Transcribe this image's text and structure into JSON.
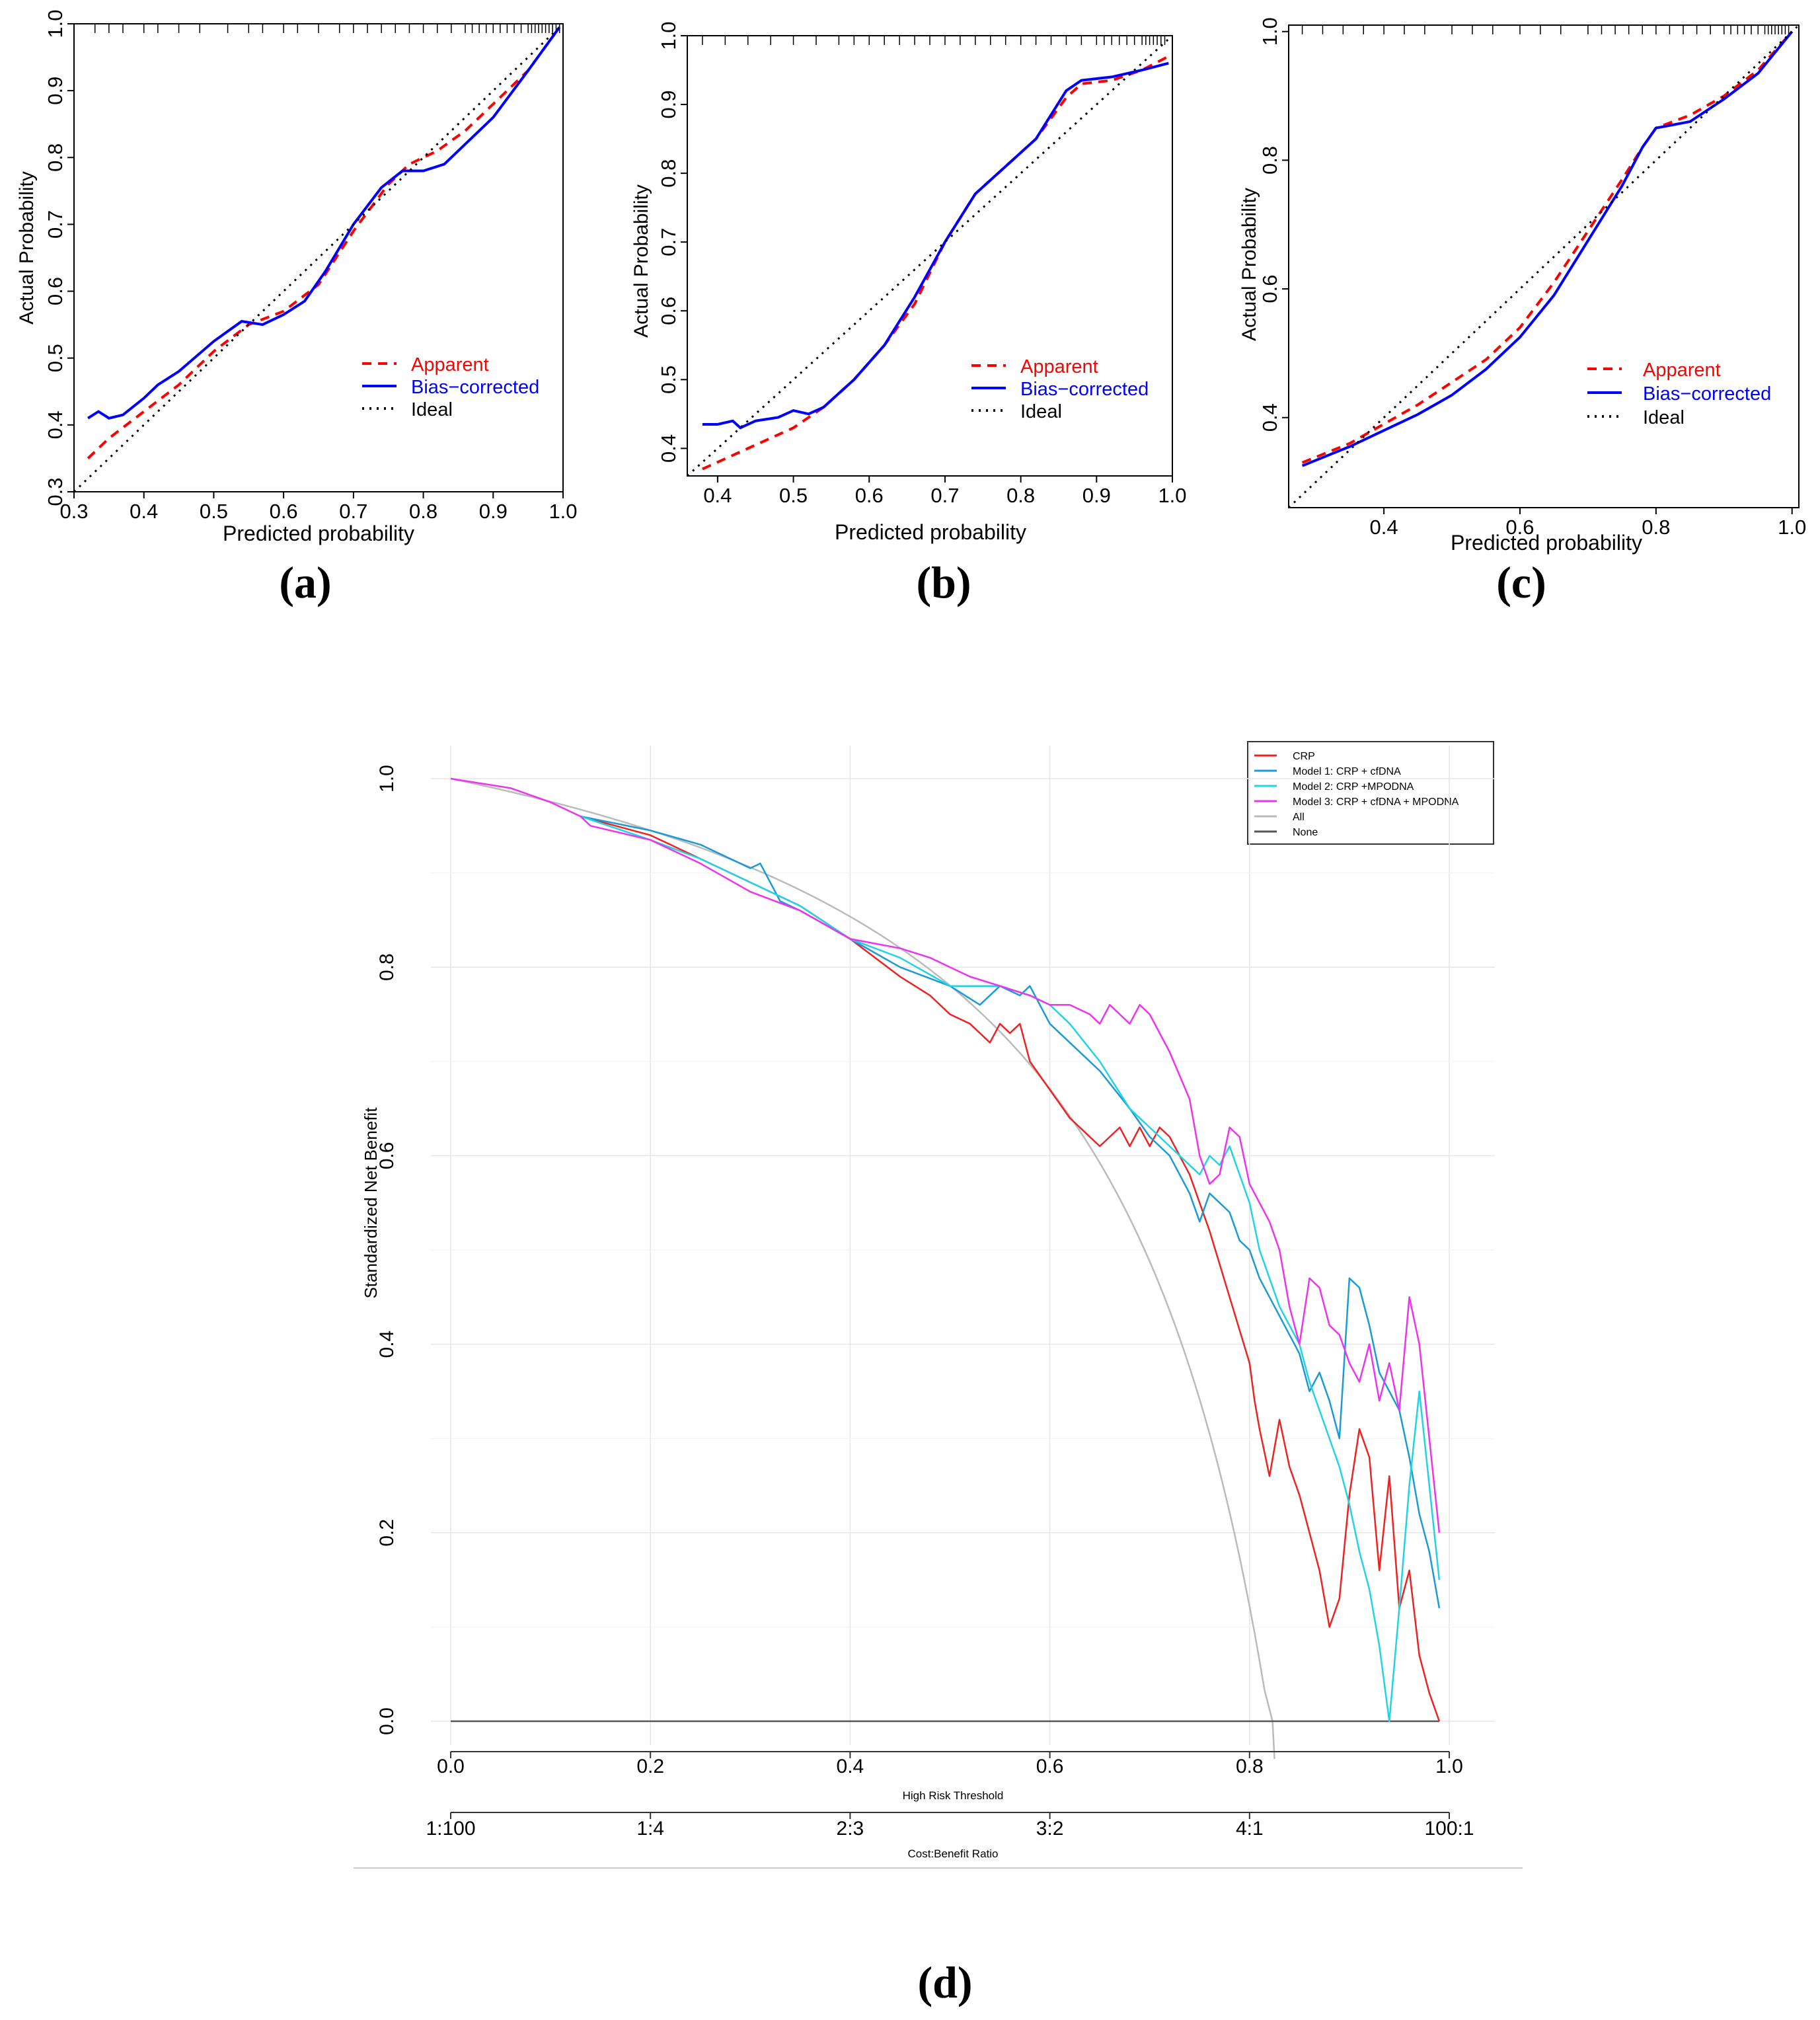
{
  "panels": [
    {
      "label": "(a)",
      "chart_data": {
        "type": "line",
        "xlabel": "Predicted probability",
        "ylabel": "Actual Probability",
        "xlim": [
          0.3,
          1.0
        ],
        "ylim": [
          0.3,
          1.0
        ],
        "xticks": [
          "0.3",
          "0.4",
          "0.5",
          "0.6",
          "0.7",
          "0.8",
          "0.9",
          "1.0"
        ],
        "yticks": [
          "0.3",
          "0.4",
          "0.5",
          "0.6",
          "0.7",
          "0.8",
          "0.9",
          "1.0"
        ],
        "legend": {
          "placement": "bottom-right",
          "entries": [
            "Apparent",
            "Bias−corrected",
            "Ideal"
          ]
        },
        "rug": [
          0.33,
          0.35,
          0.37,
          0.4,
          0.42,
          0.45,
          0.48,
          0.52,
          0.55,
          0.57,
          0.6,
          0.62,
          0.65,
          0.68,
          0.7,
          0.72,
          0.74,
          0.76,
          0.78,
          0.8,
          0.82,
          0.84,
          0.86,
          0.87,
          0.88,
          0.89,
          0.9,
          0.91,
          0.92,
          0.93,
          0.94,
          0.95,
          0.955,
          0.96,
          0.965,
          0.97,
          0.975,
          0.98,
          0.985,
          0.99,
          0.995
        ],
        "series": [
          {
            "name": "Apparent",
            "color": "#ff0000",
            "style": "dashed",
            "x": [
              0.32,
              0.35,
              0.4,
              0.45,
              0.5,
              0.55,
              0.6,
              0.65,
              0.7,
              0.75,
              0.78,
              0.82,
              0.86,
              0.9,
              0.95,
              0.995
            ],
            "y": [
              0.35,
              0.38,
              0.42,
              0.46,
              0.51,
              0.55,
              0.57,
              0.61,
              0.69,
              0.76,
              0.79,
              0.81,
              0.84,
              0.88,
              0.93,
              0.995
            ]
          },
          {
            "name": "Bias−corrected",
            "color": "#0000ff",
            "style": "solid",
            "x": [
              0.32,
              0.335,
              0.35,
              0.37,
              0.4,
              0.42,
              0.45,
              0.5,
              0.54,
              0.57,
              0.6,
              0.63,
              0.66,
              0.7,
              0.74,
              0.77,
              0.8,
              0.83,
              0.86,
              0.9,
              0.95,
              0.995
            ],
            "y": [
              0.41,
              0.42,
              0.41,
              0.415,
              0.44,
              0.46,
              0.48,
              0.525,
              0.555,
              0.55,
              0.565,
              0.585,
              0.63,
              0.7,
              0.755,
              0.78,
              0.78,
              0.79,
              0.82,
              0.86,
              0.93,
              0.995
            ]
          },
          {
            "name": "Ideal",
            "color": "#000000",
            "style": "dotted",
            "x": [
              0.3,
              1.0
            ],
            "y": [
              0.3,
              1.0
            ]
          }
        ]
      }
    },
    {
      "label": "(b)",
      "chart_data": {
        "type": "line",
        "xlabel": "Predicted probability",
        "ylabel": "Actual Probability",
        "xlim": [
          0.36,
          1.0
        ],
        "ylim": [
          0.36,
          1.0
        ],
        "xticks": [
          "0.4",
          "0.5",
          "0.6",
          "0.7",
          "0.8",
          "0.9",
          "1.0"
        ],
        "yticks": [
          "0.4",
          "0.5",
          "0.6",
          "0.7",
          "0.8",
          "0.9",
          "1.0"
        ],
        "legend": {
          "placement": "bottom-right",
          "entries": [
            "Apparent",
            "Bias−corrected",
            "Ideal"
          ]
        },
        "rug": [
          0.38,
          0.41,
          0.44,
          0.47,
          0.5,
          0.53,
          0.56,
          0.58,
          0.6,
          0.62,
          0.64,
          0.66,
          0.68,
          0.7,
          0.72,
          0.74,
          0.76,
          0.78,
          0.8,
          0.82,
          0.84,
          0.86,
          0.88,
          0.9,
          0.91,
          0.92,
          0.93,
          0.94,
          0.95,
          0.96,
          0.965,
          0.97,
          0.975,
          0.98,
          0.985,
          0.99
        ],
        "series": [
          {
            "name": "Apparent",
            "color": "#ff0000",
            "style": "dashed",
            "x": [
              0.38,
              0.42,
              0.46,
              0.5,
              0.54,
              0.58,
              0.62,
              0.66,
              0.7,
              0.74,
              0.78,
              0.82,
              0.86,
              0.88,
              0.92,
              0.96,
              0.995
            ],
            "y": [
              0.37,
              0.39,
              0.41,
              0.43,
              0.46,
              0.5,
              0.55,
              0.61,
              0.7,
              0.77,
              0.81,
              0.85,
              0.91,
              0.93,
              0.935,
              0.95,
              0.97
            ]
          },
          {
            "name": "Bias−corrected",
            "color": "#0000ff",
            "style": "solid",
            "x": [
              0.38,
              0.4,
              0.42,
              0.43,
              0.45,
              0.48,
              0.5,
              0.52,
              0.54,
              0.58,
              0.62,
              0.66,
              0.7,
              0.74,
              0.78,
              0.82,
              0.86,
              0.88,
              0.92,
              0.96,
              0.995
            ],
            "y": [
              0.435,
              0.435,
              0.44,
              0.43,
              0.44,
              0.445,
              0.455,
              0.45,
              0.46,
              0.5,
              0.55,
              0.62,
              0.7,
              0.77,
              0.81,
              0.85,
              0.92,
              0.935,
              0.94,
              0.95,
              0.96
            ]
          },
          {
            "name": "Ideal",
            "color": "#000000",
            "style": "dotted",
            "x": [
              0.36,
              1.0
            ],
            "y": [
              0.36,
              1.0
            ]
          }
        ]
      }
    },
    {
      "label": "(c)",
      "chart_data": {
        "type": "line",
        "xlabel": "Predicted probability",
        "ylabel": "Actual Probability",
        "xlim": [
          0.26,
          1.01
        ],
        "ylim": [
          0.26,
          1.01
        ],
        "xticks": [
          "0.4",
          "0.6",
          "0.8",
          "1.0"
        ],
        "yticks": [
          "0.4",
          "0.6",
          "0.8",
          "1.0"
        ],
        "legend": {
          "placement": "bottom-right",
          "entries": [
            "Apparent",
            "Bias−corrected",
            "Ideal"
          ]
        },
        "rug": [
          0.28,
          0.31,
          0.34,
          0.37,
          0.4,
          0.43,
          0.46,
          0.5,
          0.53,
          0.56,
          0.6,
          0.63,
          0.66,
          0.7,
          0.72,
          0.74,
          0.76,
          0.78,
          0.8,
          0.82,
          0.84,
          0.86,
          0.88,
          0.9,
          0.91,
          0.92,
          0.93,
          0.94,
          0.95,
          0.96,
          0.965,
          0.97,
          0.975,
          0.98,
          0.985,
          0.99,
          0.995
        ],
        "series": [
          {
            "name": "Apparent",
            "color": "#ff0000",
            "style": "dashed",
            "x": [
              0.28,
              0.35,
              0.4,
              0.45,
              0.5,
              0.55,
              0.6,
              0.65,
              0.7,
              0.75,
              0.78,
              0.8,
              0.85,
              0.9,
              0.95,
              1.0
            ],
            "y": [
              0.33,
              0.36,
              0.39,
              0.42,
              0.455,
              0.49,
              0.54,
              0.61,
              0.69,
              0.77,
              0.82,
              0.85,
              0.87,
              0.9,
              0.94,
              1.0
            ]
          },
          {
            "name": "Bias−corrected",
            "color": "#0000ff",
            "style": "solid",
            "x": [
              0.28,
              0.35,
              0.4,
              0.45,
              0.5,
              0.55,
              0.6,
              0.65,
              0.7,
              0.75,
              0.78,
              0.8,
              0.85,
              0.9,
              0.95,
              1.0
            ],
            "y": [
              0.325,
              0.355,
              0.38,
              0.405,
              0.435,
              0.475,
              0.525,
              0.59,
              0.675,
              0.76,
              0.82,
              0.85,
              0.86,
              0.895,
              0.935,
              1.0
            ]
          },
          {
            "name": "Ideal",
            "color": "#000000",
            "style": "dotted",
            "x": [
              0.26,
              1.01
            ],
            "y": [
              0.26,
              1.01
            ]
          }
        ]
      }
    }
  ],
  "dca": {
    "label": "(d)",
    "chart_data": {
      "type": "line",
      "xlabel": "High Risk Threshold",
      "ylabel": "Standardized Net Benefit",
      "secondary_axis_label": "Cost:Benefit Ratio",
      "xlim": [
        0.0,
        1.0
      ],
      "ylim": [
        0.0,
        1.0
      ],
      "xticks": [
        "0.0",
        "0.2",
        "0.4",
        "0.6",
        "0.8",
        "1.0"
      ],
      "yticks": [
        "0.0",
        "0.2",
        "0.4",
        "0.6",
        "0.8",
        "1.0"
      ],
      "ratio_ticks": [
        "1:100",
        "1:4",
        "2:3",
        "3:2",
        "4:1",
        "100:1"
      ],
      "grid": true,
      "legend": {
        "placement": "top-right"
      },
      "series": [
        {
          "name": "CRP",
          "color": "#ee2222",
          "x": [
            0.13,
            0.2,
            0.25,
            0.3,
            0.35,
            0.4,
            0.45,
            0.48,
            0.5,
            0.52,
            0.53,
            0.54,
            0.55,
            0.56,
            0.57,
            0.58,
            0.6,
            0.62,
            0.65,
            0.66,
            0.67,
            0.68,
            0.69,
            0.7,
            0.71,
            0.72,
            0.74,
            0.76,
            0.78,
            0.8,
            0.805,
            0.81,
            0.82,
            0.83,
            0.84,
            0.85,
            0.86,
            0.87,
            0.88,
            0.89,
            0.9,
            0.91,
            0.92,
            0.93,
            0.94,
            0.95,
            0.96,
            0.97,
            0.98,
            0.99
          ],
          "y": [
            0.96,
            0.94,
            0.915,
            0.89,
            0.865,
            0.83,
            0.79,
            0.77,
            0.75,
            0.74,
            0.73,
            0.72,
            0.74,
            0.73,
            0.74,
            0.7,
            0.67,
            0.64,
            0.61,
            0.62,
            0.63,
            0.61,
            0.63,
            0.61,
            0.63,
            0.62,
            0.58,
            0.52,
            0.45,
            0.38,
            0.34,
            0.31,
            0.26,
            0.32,
            0.27,
            0.24,
            0.2,
            0.16,
            0.1,
            0.13,
            0.24,
            0.31,
            0.28,
            0.16,
            0.26,
            0.12,
            0.16,
            0.07,
            0.03,
            0.0
          ]
        },
        {
          "name": "Model 1: CRP + cfDNA",
          "color": "#1a9ad6",
          "x": [
            0.13,
            0.2,
            0.25,
            0.3,
            0.31,
            0.32,
            0.33,
            0.35,
            0.4,
            0.45,
            0.5,
            0.53,
            0.55,
            0.57,
            0.58,
            0.6,
            0.62,
            0.65,
            0.68,
            0.7,
            0.72,
            0.74,
            0.75,
            0.76,
            0.77,
            0.78,
            0.79,
            0.8,
            0.81,
            0.82,
            0.83,
            0.84,
            0.85,
            0.86,
            0.87,
            0.88,
            0.89,
            0.9,
            0.91,
            0.92,
            0.93,
            0.94,
            0.95,
            0.96,
            0.97,
            0.98,
            0.99
          ],
          "y": [
            0.96,
            0.945,
            0.93,
            0.905,
            0.91,
            0.89,
            0.87,
            0.86,
            0.83,
            0.8,
            0.78,
            0.76,
            0.78,
            0.77,
            0.78,
            0.74,
            0.72,
            0.69,
            0.65,
            0.62,
            0.6,
            0.56,
            0.53,
            0.56,
            0.55,
            0.54,
            0.51,
            0.5,
            0.47,
            0.45,
            0.43,
            0.41,
            0.39,
            0.35,
            0.37,
            0.34,
            0.3,
            0.47,
            0.46,
            0.42,
            0.37,
            0.35,
            0.33,
            0.28,
            0.22,
            0.18,
            0.12
          ]
        },
        {
          "name": "Model 2: CRP +MPODNA",
          "color": "#22d3e6",
          "x": [
            0.13,
            0.2,
            0.25,
            0.3,
            0.35,
            0.4,
            0.45,
            0.5,
            0.55,
            0.58,
            0.6,
            0.62,
            0.65,
            0.68,
            0.7,
            0.72,
            0.74,
            0.75,
            0.76,
            0.77,
            0.78,
            0.79,
            0.8,
            0.81,
            0.82,
            0.83,
            0.84,
            0.85,
            0.86,
            0.87,
            0.88,
            0.89,
            0.9,
            0.91,
            0.92,
            0.93,
            0.94,
            0.95,
            0.96,
            0.97,
            0.98,
            0.99
          ],
          "y": [
            0.96,
            0.935,
            0.915,
            0.89,
            0.865,
            0.83,
            0.81,
            0.78,
            0.78,
            0.77,
            0.76,
            0.74,
            0.7,
            0.65,
            0.63,
            0.61,
            0.59,
            0.58,
            0.6,
            0.59,
            0.61,
            0.58,
            0.55,
            0.5,
            0.47,
            0.44,
            0.42,
            0.4,
            0.36,
            0.33,
            0.3,
            0.27,
            0.23,
            0.18,
            0.14,
            0.08,
            0.0,
            0.12,
            0.25,
            0.35,
            0.25,
            0.15
          ]
        },
        {
          "name": "Model 3: CRP + cfDNA + MPODNA",
          "color": "#ee33ee",
          "x": [
            0.13,
            0.14,
            0.2,
            0.25,
            0.3,
            0.35,
            0.4,
            0.45,
            0.48,
            0.5,
            0.52,
            0.55,
            0.58,
            0.6,
            0.62,
            0.64,
            0.65,
            0.66,
            0.67,
            0.68,
            0.69,
            0.7,
            0.72,
            0.74,
            0.75,
            0.76,
            0.77,
            0.78,
            0.79,
            0.8,
            0.81,
            0.82,
            0.83,
            0.84,
            0.85,
            0.86,
            0.87,
            0.88,
            0.89,
            0.9,
            0.91,
            0.92,
            0.93,
            0.94,
            0.95,
            0.96,
            0.97,
            0.98,
            0.99
          ],
          "y": [
            0.96,
            0.95,
            0.935,
            0.91,
            0.88,
            0.86,
            0.83,
            0.82,
            0.81,
            0.8,
            0.79,
            0.78,
            0.77,
            0.76,
            0.76,
            0.75,
            0.74,
            0.76,
            0.75,
            0.74,
            0.76,
            0.75,
            0.71,
            0.66,
            0.6,
            0.57,
            0.58,
            0.63,
            0.62,
            0.57,
            0.55,
            0.53,
            0.5,
            0.44,
            0.4,
            0.47,
            0.46,
            0.42,
            0.41,
            0.38,
            0.36,
            0.4,
            0.34,
            0.38,
            0.33,
            0.45,
            0.4,
            0.3,
            0.2
          ]
        },
        {
          "name": "All",
          "color": "#bbbbbb"
        },
        {
          "name": "None",
          "color": "#555555"
        }
      ]
    }
  }
}
